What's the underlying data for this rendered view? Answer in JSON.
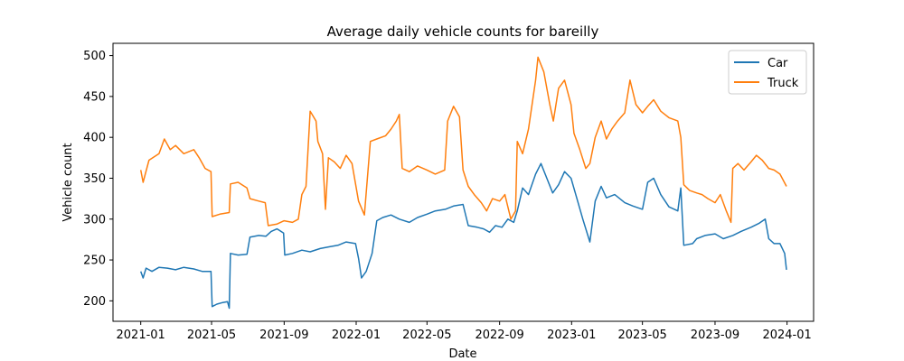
{
  "chart_data": {
    "type": "line",
    "title": "Average daily vehicle counts for bareilly",
    "xlabel": "Date",
    "ylabel": "Vehicle count",
    "xlim": [
      "2020-11-15",
      "2024-02-15"
    ],
    "ylim": [
      175,
      515
    ],
    "x_ticks": [
      "2021-01",
      "2021-05",
      "2021-09",
      "2022-01",
      "2022-05",
      "2022-09",
      "2023-01",
      "2023-05",
      "2023-09",
      "2024-01"
    ],
    "y_ticks": [
      200,
      250,
      300,
      350,
      400,
      450,
      500
    ],
    "grid": false,
    "legend_position": "top-right",
    "series": [
      {
        "name": "Car",
        "color": "#1f77b4",
        "points": [
          [
            "2021-01-01",
            236
          ],
          [
            "2021-01-05",
            228
          ],
          [
            "2021-01-10",
            240
          ],
          [
            "2021-01-20",
            236
          ],
          [
            "2021-02-01",
            241
          ],
          [
            "2021-02-15",
            240
          ],
          [
            "2021-03-01",
            238
          ],
          [
            "2021-03-15",
            241
          ],
          [
            "2021-04-01",
            239
          ],
          [
            "2021-04-15",
            236
          ],
          [
            "2021-04-30",
            236
          ],
          [
            "2021-05-02",
            193
          ],
          [
            "2021-05-10",
            196
          ],
          [
            "2021-05-20",
            198
          ],
          [
            "2021-05-28",
            199
          ],
          [
            "2021-05-31",
            191
          ],
          [
            "2021-06-02",
            258
          ],
          [
            "2021-06-15",
            256
          ],
          [
            "2021-06-30",
            257
          ],
          [
            "2021-07-05",
            278
          ],
          [
            "2021-07-20",
            280
          ],
          [
            "2021-08-01",
            279
          ],
          [
            "2021-08-10",
            285
          ],
          [
            "2021-08-20",
            288
          ],
          [
            "2021-08-31",
            283
          ],
          [
            "2021-09-02",
            256
          ],
          [
            "2021-09-15",
            258
          ],
          [
            "2021-10-01",
            262
          ],
          [
            "2021-10-15",
            260
          ],
          [
            "2021-11-01",
            264
          ],
          [
            "2021-11-15",
            266
          ],
          [
            "2021-12-01",
            268
          ],
          [
            "2021-12-15",
            272
          ],
          [
            "2021-12-31",
            270
          ],
          [
            "2022-01-05",
            252
          ],
          [
            "2022-01-10",
            228
          ],
          [
            "2022-01-18",
            236
          ],
          [
            "2022-01-28",
            258
          ],
          [
            "2022-02-05",
            298
          ],
          [
            "2022-02-15",
            302
          ],
          [
            "2022-03-01",
            305
          ],
          [
            "2022-03-15",
            300
          ],
          [
            "2022-04-01",
            296
          ],
          [
            "2022-04-15",
            302
          ],
          [
            "2022-05-01",
            306
          ],
          [
            "2022-05-15",
            310
          ],
          [
            "2022-06-01",
            312
          ],
          [
            "2022-06-15",
            316
          ],
          [
            "2022-07-01",
            318
          ],
          [
            "2022-07-10",
            292
          ],
          [
            "2022-07-25",
            290
          ],
          [
            "2022-08-05",
            288
          ],
          [
            "2022-08-15",
            284
          ],
          [
            "2022-08-25",
            292
          ],
          [
            "2022-09-05",
            290
          ],
          [
            "2022-09-15",
            300
          ],
          [
            "2022-09-25",
            296
          ],
          [
            "2022-10-01",
            310
          ],
          [
            "2022-10-10",
            338
          ],
          [
            "2022-10-20",
            330
          ],
          [
            "2022-11-01",
            355
          ],
          [
            "2022-11-10",
            368
          ],
          [
            "2022-11-20",
            350
          ],
          [
            "2022-11-30",
            332
          ],
          [
            "2022-12-10",
            342
          ],
          [
            "2022-12-20",
            358
          ],
          [
            "2022-12-31",
            350
          ],
          [
            "2023-01-10",
            325
          ],
          [
            "2023-01-20",
            300
          ],
          [
            "2023-02-01",
            272
          ],
          [
            "2023-02-10",
            322
          ],
          [
            "2023-02-20",
            340
          ],
          [
            "2023-03-01",
            326
          ],
          [
            "2023-03-15",
            330
          ],
          [
            "2023-04-01",
            320
          ],
          [
            "2023-04-15",
            316
          ],
          [
            "2023-05-01",
            312
          ],
          [
            "2023-05-10",
            345
          ],
          [
            "2023-05-20",
            350
          ],
          [
            "2023-06-01",
            330
          ],
          [
            "2023-06-15",
            315
          ],
          [
            "2023-06-30",
            310
          ],
          [
            "2023-07-05",
            338
          ],
          [
            "2023-07-10",
            268
          ],
          [
            "2023-07-25",
            270
          ],
          [
            "2023-08-01",
            276
          ],
          [
            "2023-08-15",
            280
          ],
          [
            "2023-09-01",
            282
          ],
          [
            "2023-09-15",
            276
          ],
          [
            "2023-10-01",
            280
          ],
          [
            "2023-10-15",
            285
          ],
          [
            "2023-11-01",
            290
          ],
          [
            "2023-11-15",
            295
          ],
          [
            "2023-11-25",
            300
          ],
          [
            "2023-12-01",
            276
          ],
          [
            "2023-12-10",
            270
          ],
          [
            "2023-12-20",
            270
          ],
          [
            "2023-12-28",
            258
          ],
          [
            "2023-12-31",
            238
          ]
        ]
      },
      {
        "name": "Truck",
        "color": "#ff7f0e",
        "points": [
          [
            "2021-01-01",
            360
          ],
          [
            "2021-01-05",
            345
          ],
          [
            "2021-01-15",
            372
          ],
          [
            "2021-02-01",
            380
          ],
          [
            "2021-02-10",
            398
          ],
          [
            "2021-02-20",
            385
          ],
          [
            "2021-03-01",
            390
          ],
          [
            "2021-03-15",
            380
          ],
          [
            "2021-04-01",
            385
          ],
          [
            "2021-04-10",
            375
          ],
          [
            "2021-04-20",
            362
          ],
          [
            "2021-04-30",
            358
          ],
          [
            "2021-05-02",
            303
          ],
          [
            "2021-05-15",
            306
          ],
          [
            "2021-05-31",
            308
          ],
          [
            "2021-06-02",
            343
          ],
          [
            "2021-06-15",
            345
          ],
          [
            "2021-06-30",
            338
          ],
          [
            "2021-07-05",
            325
          ],
          [
            "2021-07-20",
            322
          ],
          [
            "2021-07-31",
            320
          ],
          [
            "2021-08-05",
            292
          ],
          [
            "2021-08-20",
            294
          ],
          [
            "2021-09-01",
            298
          ],
          [
            "2021-09-15",
            296
          ],
          [
            "2021-09-25",
            300
          ],
          [
            "2021-10-01",
            330
          ],
          [
            "2021-10-08",
            340
          ],
          [
            "2021-10-15",
            432
          ],
          [
            "2021-10-25",
            420
          ],
          [
            "2021-10-28",
            395
          ],
          [
            "2021-11-05",
            380
          ],
          [
            "2021-11-10",
            312
          ],
          [
            "2021-11-15",
            375
          ],
          [
            "2021-11-25",
            370
          ],
          [
            "2021-12-05",
            362
          ],
          [
            "2021-12-15",
            378
          ],
          [
            "2021-12-25",
            368
          ],
          [
            "2022-01-05",
            322
          ],
          [
            "2022-01-15",
            305
          ],
          [
            "2022-01-25",
            395
          ],
          [
            "2022-02-05",
            398
          ],
          [
            "2022-02-20",
            402
          ],
          [
            "2022-03-01",
            410
          ],
          [
            "2022-03-10",
            420
          ],
          [
            "2022-03-15",
            428
          ],
          [
            "2022-03-20",
            362
          ],
          [
            "2022-04-01",
            358
          ],
          [
            "2022-04-15",
            365
          ],
          [
            "2022-05-01",
            360
          ],
          [
            "2022-05-15",
            355
          ],
          [
            "2022-05-31",
            360
          ],
          [
            "2022-06-05",
            420
          ],
          [
            "2022-06-15",
            438
          ],
          [
            "2022-06-25",
            425
          ],
          [
            "2022-07-01",
            360
          ],
          [
            "2022-07-10",
            340
          ],
          [
            "2022-07-20",
            330
          ],
          [
            "2022-08-01",
            320
          ],
          [
            "2022-08-10",
            310
          ],
          [
            "2022-08-20",
            325
          ],
          [
            "2022-09-01",
            322
          ],
          [
            "2022-09-10",
            330
          ],
          [
            "2022-09-20",
            300
          ],
          [
            "2022-09-28",
            310
          ],
          [
            "2022-10-01",
            395
          ],
          [
            "2022-10-10",
            380
          ],
          [
            "2022-10-20",
            410
          ],
          [
            "2022-11-01",
            470
          ],
          [
            "2022-11-05",
            498
          ],
          [
            "2022-11-15",
            480
          ],
          [
            "2022-11-25",
            440
          ],
          [
            "2022-12-01",
            420
          ],
          [
            "2022-12-10",
            460
          ],
          [
            "2022-12-20",
            470
          ],
          [
            "2022-12-31",
            440
          ],
          [
            "2023-01-05",
            405
          ],
          [
            "2023-01-15",
            385
          ],
          [
            "2023-01-25",
            362
          ],
          [
            "2023-02-01",
            368
          ],
          [
            "2023-02-10",
            400
          ],
          [
            "2023-02-20",
            420
          ],
          [
            "2023-03-01",
            398
          ],
          [
            "2023-03-10",
            410
          ],
          [
            "2023-03-20",
            420
          ],
          [
            "2023-04-01",
            430
          ],
          [
            "2023-04-10",
            470
          ],
          [
            "2023-04-20",
            440
          ],
          [
            "2023-05-01",
            430
          ],
          [
            "2023-05-10",
            438
          ],
          [
            "2023-05-20",
            446
          ],
          [
            "2023-06-01",
            432
          ],
          [
            "2023-06-15",
            424
          ],
          [
            "2023-06-30",
            420
          ],
          [
            "2023-07-05",
            400
          ],
          [
            "2023-07-10",
            342
          ],
          [
            "2023-07-20",
            335
          ],
          [
            "2023-08-01",
            332
          ],
          [
            "2023-08-10",
            330
          ],
          [
            "2023-08-20",
            325
          ],
          [
            "2023-09-01",
            320
          ],
          [
            "2023-09-10",
            330
          ],
          [
            "2023-09-20",
            310
          ],
          [
            "2023-09-28",
            296
          ],
          [
            "2023-10-01",
            362
          ],
          [
            "2023-10-10",
            368
          ],
          [
            "2023-10-20",
            360
          ],
          [
            "2023-11-01",
            370
          ],
          [
            "2023-11-10",
            378
          ],
          [
            "2023-11-20",
            372
          ],
          [
            "2023-12-01",
            362
          ],
          [
            "2023-12-10",
            360
          ],
          [
            "2023-12-20",
            355
          ],
          [
            "2023-12-31",
            340
          ]
        ]
      }
    ]
  }
}
